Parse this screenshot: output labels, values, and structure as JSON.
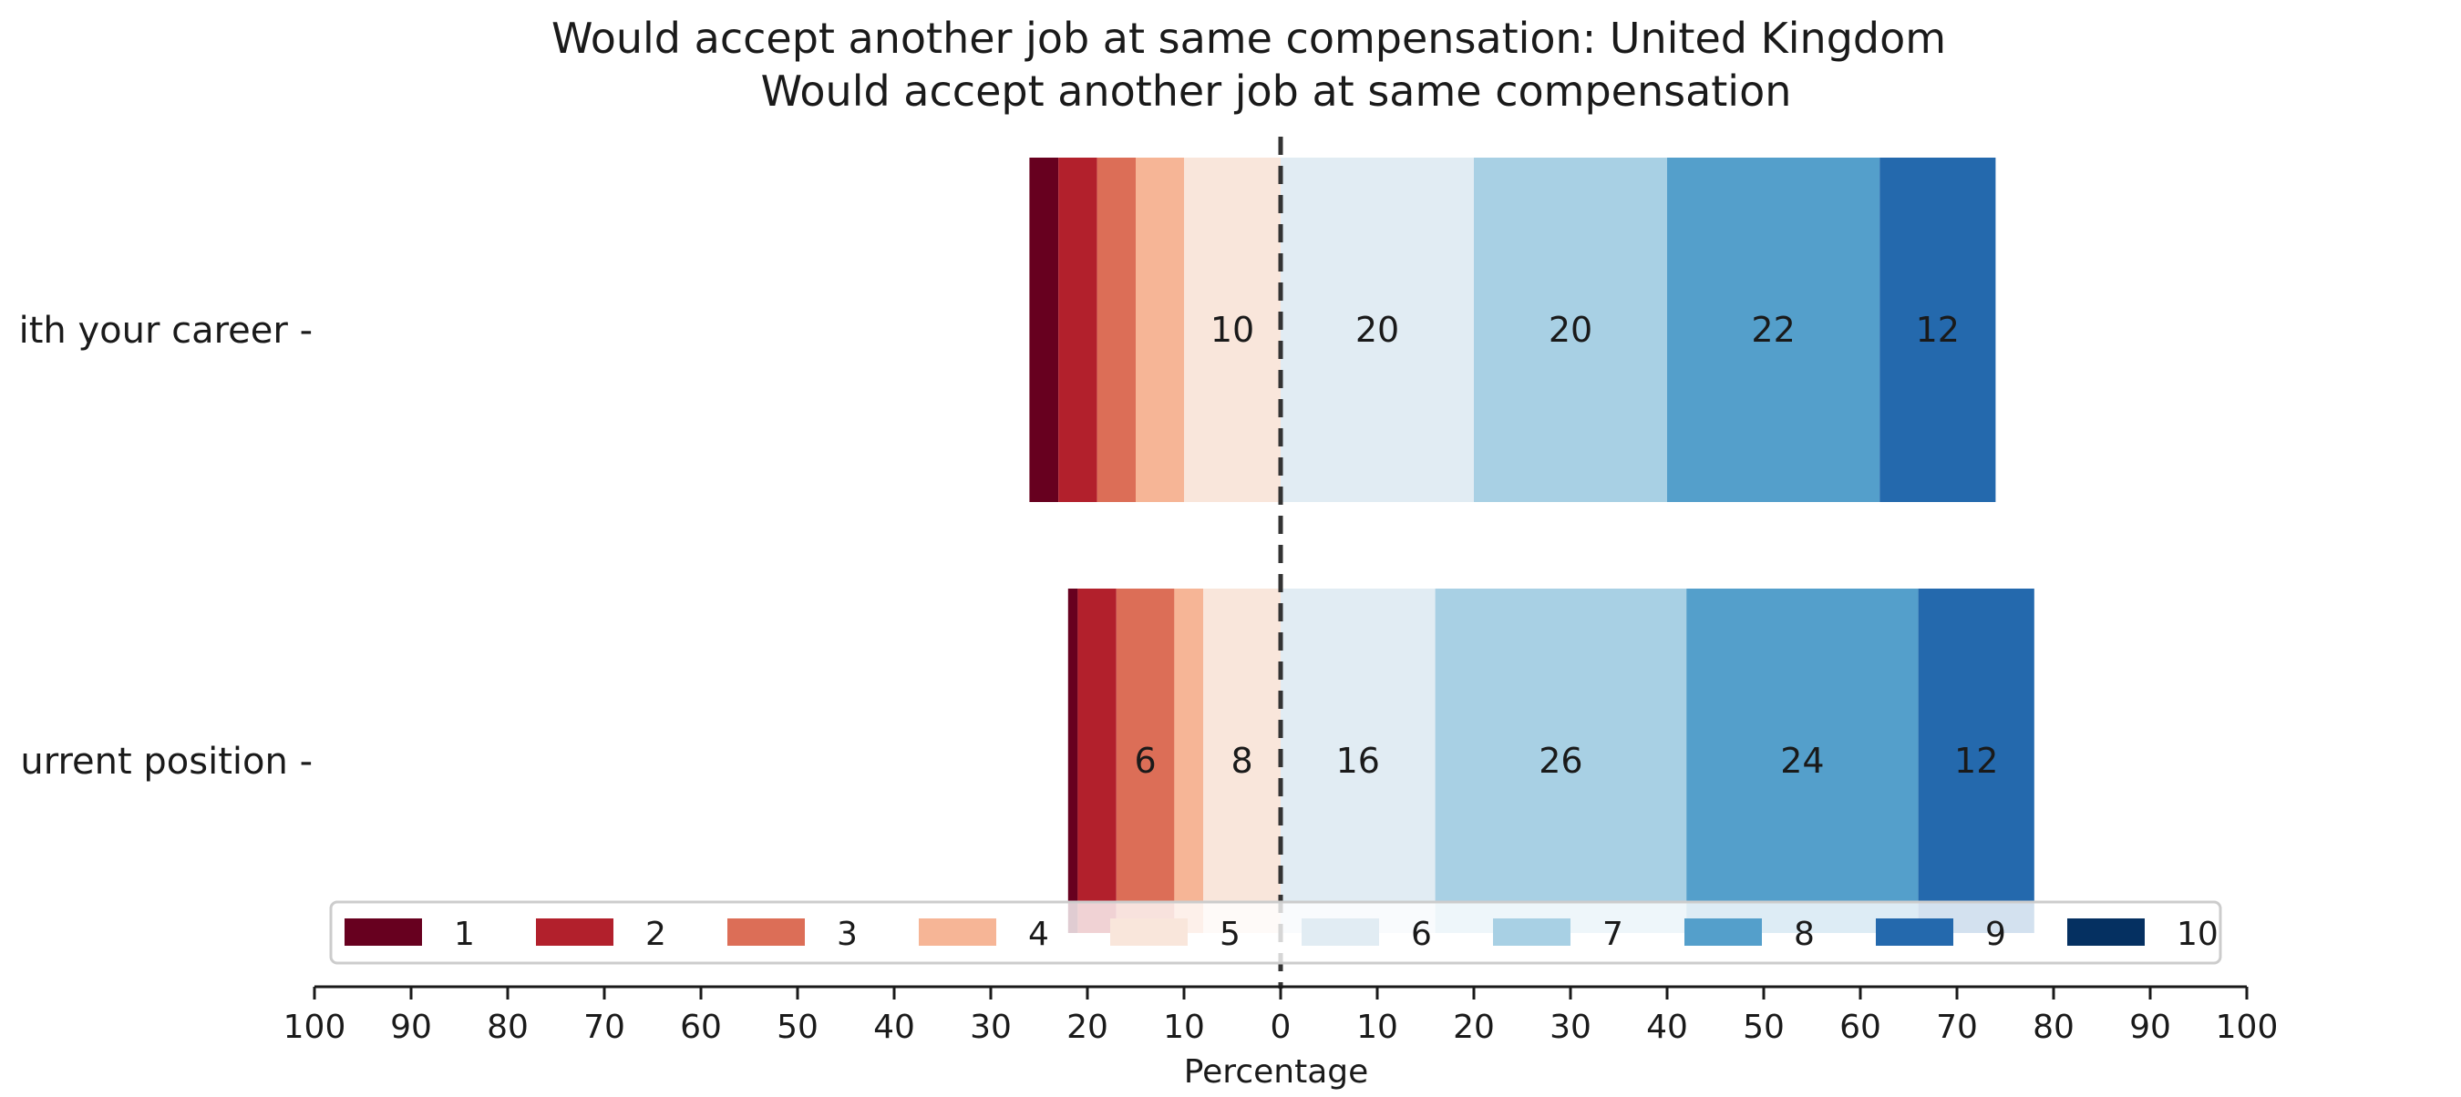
{
  "chart_data": {
    "type": "bar",
    "orientation": "horizontal",
    "stacked": "diverging",
    "title": "Would accept another job at same compensation: United Kingdom",
    "subtitle": "Would accept another job at same compensation",
    "xlabel": "Percentage",
    "xlim": [
      -100,
      100
    ],
    "x_ticks": [
      -100,
      -90,
      -80,
      -70,
      -60,
      -50,
      -40,
      -30,
      -20,
      -10,
      0,
      10,
      20,
      30,
      40,
      50,
      60,
      70,
      80,
      90,
      100
    ],
    "x_tick_labels": [
      "100",
      "90",
      "80",
      "70",
      "60",
      "50",
      "40",
      "30",
      "20",
      "10",
      "0",
      "10",
      "20",
      "30",
      "40",
      "50",
      "60",
      "70",
      "80",
      "90",
      "100"
    ],
    "categories": [
      "ith your career",
      "urrent position"
    ],
    "series": [
      {
        "name": "1",
        "color": "#67001f",
        "values": [
          3,
          1
        ]
      },
      {
        "name": "2",
        "color": "#b2202c",
        "values": [
          4,
          4
        ]
      },
      {
        "name": "3",
        "color": "#dc6e57",
        "values": [
          4,
          6
        ]
      },
      {
        "name": "4",
        "color": "#f6b596",
        "values": [
          5,
          3
        ]
      },
      {
        "name": "5",
        "color": "#f9e6db",
        "values": [
          10,
          8
        ]
      },
      {
        "name": "6",
        "color": "#e1ecf3",
        "values": [
          20,
          16
        ]
      },
      {
        "name": "7",
        "color": "#a8d0e4",
        "values": [
          20,
          26
        ]
      },
      {
        "name": "8",
        "color": "#549fcb",
        "values": [
          22,
          24
        ]
      },
      {
        "name": "9",
        "color": "#2469ad",
        "values": [
          12,
          12
        ]
      },
      {
        "name": "10",
        "color": "#053061",
        "values": [
          0,
          0
        ]
      }
    ],
    "data_labels": [
      [
        null,
        null,
        null,
        null,
        "10",
        "20",
        "20",
        "22",
        "12",
        null
      ],
      [
        null,
        null,
        "6",
        null,
        "8",
        "16",
        "26",
        "24",
        "12",
        null
      ]
    ],
    "negative_series_count": 5,
    "center_line": 0,
    "legend_position": "bottom-center",
    "grid": false
  }
}
